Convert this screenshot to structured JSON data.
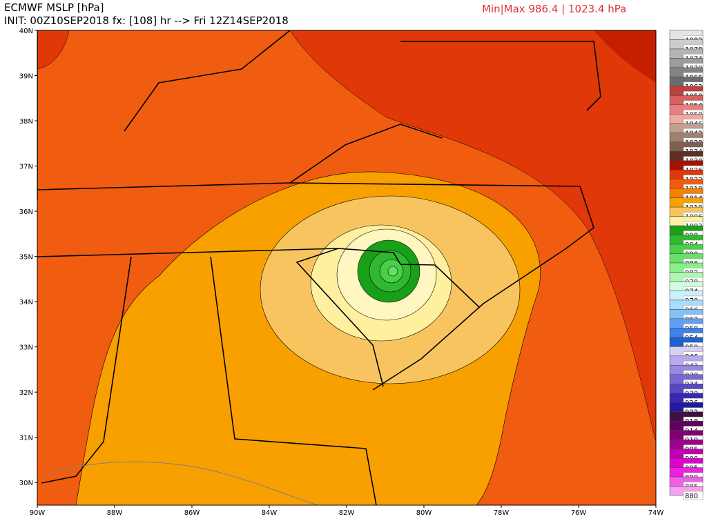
{
  "header": {
    "title": "ECMWF MSLP [hPa]",
    "init": "INIT: 00Z10SEP2018 fx: [108] hr --> Fri 12Z14SEP2018",
    "minmax": "Min|Max 986.4 | 1023.4 hPa"
  },
  "axes": {
    "lon": [
      "90W",
      "88W",
      "86W",
      "84W",
      "82W",
      "80W",
      "78W",
      "76W",
      "74W"
    ],
    "lat": [
      "40N",
      "39N",
      "38N",
      "37N",
      "36N",
      "35N",
      "34N",
      "33N",
      "32N",
      "31N",
      "30N"
    ]
  },
  "legend": [
    {
      "label": 1082,
      "color": "#e4e4e4"
    },
    {
      "label": 1078,
      "color": "#cccccc"
    },
    {
      "label": 1074,
      "color": "#b4b4b4"
    },
    {
      "label": 1070,
      "color": "#9c9c9c"
    },
    {
      "label": 1066,
      "color": "#848484"
    },
    {
      "label": 1062,
      "color": "#6c6c6c"
    },
    {
      "label": 1058,
      "color": "#c04040"
    },
    {
      "label": 1054,
      "color": "#d86060"
    },
    {
      "label": 1050,
      "color": "#e88080"
    },
    {
      "label": 1046,
      "color": "#f0a8a0"
    },
    {
      "label": 1042,
      "color": "#c0a090"
    },
    {
      "label": 1038,
      "color": "#a08070"
    },
    {
      "label": 1034,
      "color": "#806050"
    },
    {
      "label": 1030,
      "color": "#603020"
    },
    {
      "label": 1026,
      "color": "#a81000"
    },
    {
      "label": 1022,
      "color": "#e03808"
    },
    {
      "label": 1018,
      "color": "#f05c10"
    },
    {
      "label": 1014,
      "color": "#f48200"
    },
    {
      "label": 1010,
      "color": "#f8a000"
    },
    {
      "label": 1006,
      "color": "#f8c460"
    },
    {
      "label": 1002,
      "color": "#fff0a0"
    },
    {
      "label": 998,
      "color": "#18a018"
    },
    {
      "label": 994,
      "color": "#30b830"
    },
    {
      "label": 990,
      "color": "#48d048"
    },
    {
      "label": 986,
      "color": "#68e068"
    },
    {
      "label": 982,
      "color": "#88f088"
    },
    {
      "label": 978,
      "color": "#b0f8b0"
    },
    {
      "label": 974,
      "color": "#d0fce0"
    },
    {
      "label": 970,
      "color": "#c8f0ff"
    },
    {
      "label": 966,
      "color": "#a8dcff"
    },
    {
      "label": 962,
      "color": "#84c0f8"
    },
    {
      "label": 958,
      "color": "#60a0f0"
    },
    {
      "label": 954,
      "color": "#4080e8"
    },
    {
      "label": 950,
      "color": "#2060d0"
    },
    {
      "label": 946,
      "color": "#d8d0f4"
    },
    {
      "label": 942,
      "color": "#b8a8ec"
    },
    {
      "label": 938,
      "color": "#9888e0"
    },
    {
      "label": 934,
      "color": "#7868d4"
    },
    {
      "label": 930,
      "color": "#5848c4"
    },
    {
      "label": 926,
      "color": "#3828b4"
    },
    {
      "label": 922,
      "color": "#2418a0"
    },
    {
      "label": 918,
      "color": "#401040"
    },
    {
      "label": 914,
      "color": "#600060"
    },
    {
      "label": 910,
      "color": "#800070"
    },
    {
      "label": 905,
      "color": "#a00090"
    },
    {
      "label": 900,
      "color": "#c000b0"
    },
    {
      "label": 895,
      "color": "#e000d0"
    },
    {
      "label": 890,
      "color": "#f020e0"
    },
    {
      "label": 885,
      "color": "#f060e8"
    },
    {
      "label": 880,
      "color": "#f8a0f0"
    }
  ]
}
